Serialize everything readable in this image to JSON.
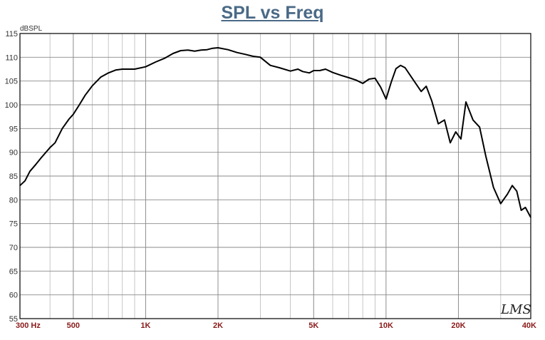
{
  "chart_data": {
    "type": "line",
    "title": "SPL vs Freq",
    "ylabel": "dBSPL",
    "xlabel": "",
    "x_scale": "log",
    "xlim": [
      300,
      40000
    ],
    "ylim": [
      55,
      115
    ],
    "y_ticks": [
      55,
      60,
      65,
      70,
      75,
      80,
      85,
      90,
      95,
      100,
      105,
      110,
      115
    ],
    "x_ticks": [
      {
        "value": 300,
        "label": "300  Hz"
      },
      {
        "value": 500,
        "label": "500"
      },
      {
        "value": 1000,
        "label": "1K"
      },
      {
        "value": 2000,
        "label": "2K"
      },
      {
        "value": 5000,
        "label": "5K"
      },
      {
        "value": 10000,
        "label": "10K"
      },
      {
        "value": 20000,
        "label": "20K"
      },
      {
        "value": 40000,
        "label": "40K"
      }
    ],
    "grid": true,
    "watermark": "LMS",
    "series": [
      {
        "x": [
          300,
          315,
          330,
          350,
          370,
          400,
          420,
          450,
          480,
          500,
          530,
          560,
          600,
          650,
          700,
          750,
          800,
          900,
          1000,
          1100,
          1200,
          1300,
          1400,
          1500,
          1600,
          1700,
          1800,
          1900,
          2000,
          2200,
          2400,
          2600,
          2800,
          3000,
          3300,
          3600,
          4000,
          4300,
          4500,
          4800,
          5000,
          5300,
          5600,
          6000,
          6500,
          7000,
          7500,
          8000,
          8500,
          9000,
          9500,
          10000,
          10500,
          11000,
          11500,
          12000,
          13000,
          14000,
          14700,
          15500,
          16500,
          17500,
          18500,
          19500,
          20500,
          21500,
          23000,
          24500,
          26000,
          28000,
          30000,
          32000,
          33500,
          35000,
          36500,
          38000,
          40000
        ],
        "values": [
          83,
          84,
          86,
          87.5,
          89,
          91,
          92,
          95,
          97,
          98,
          100,
          102,
          104,
          105.8,
          106.7,
          107.3,
          107.5,
          107.5,
          108,
          109,
          109.8,
          110.8,
          111.4,
          111.5,
          111.3,
          111.5,
          111.6,
          111.9,
          112,
          111.6,
          111,
          110.6,
          110.2,
          110,
          108.3,
          107.8,
          107.1,
          107.5,
          107,
          106.7,
          107.2,
          107.2,
          107.5,
          106.8,
          106.2,
          105.7,
          105.2,
          104.5,
          105.4,
          105.6,
          103.7,
          101.2,
          104.7,
          107.6,
          108.3,
          107.8,
          105.2,
          102.8,
          103.9,
          100.8,
          96,
          96.8,
          92,
          94.3,
          92.8,
          100.6,
          96.8,
          95.3,
          89.2,
          82.6,
          79.2,
          81.2,
          83,
          81.8,
          77.8,
          78.4,
          76.3
        ]
      }
    ]
  }
}
